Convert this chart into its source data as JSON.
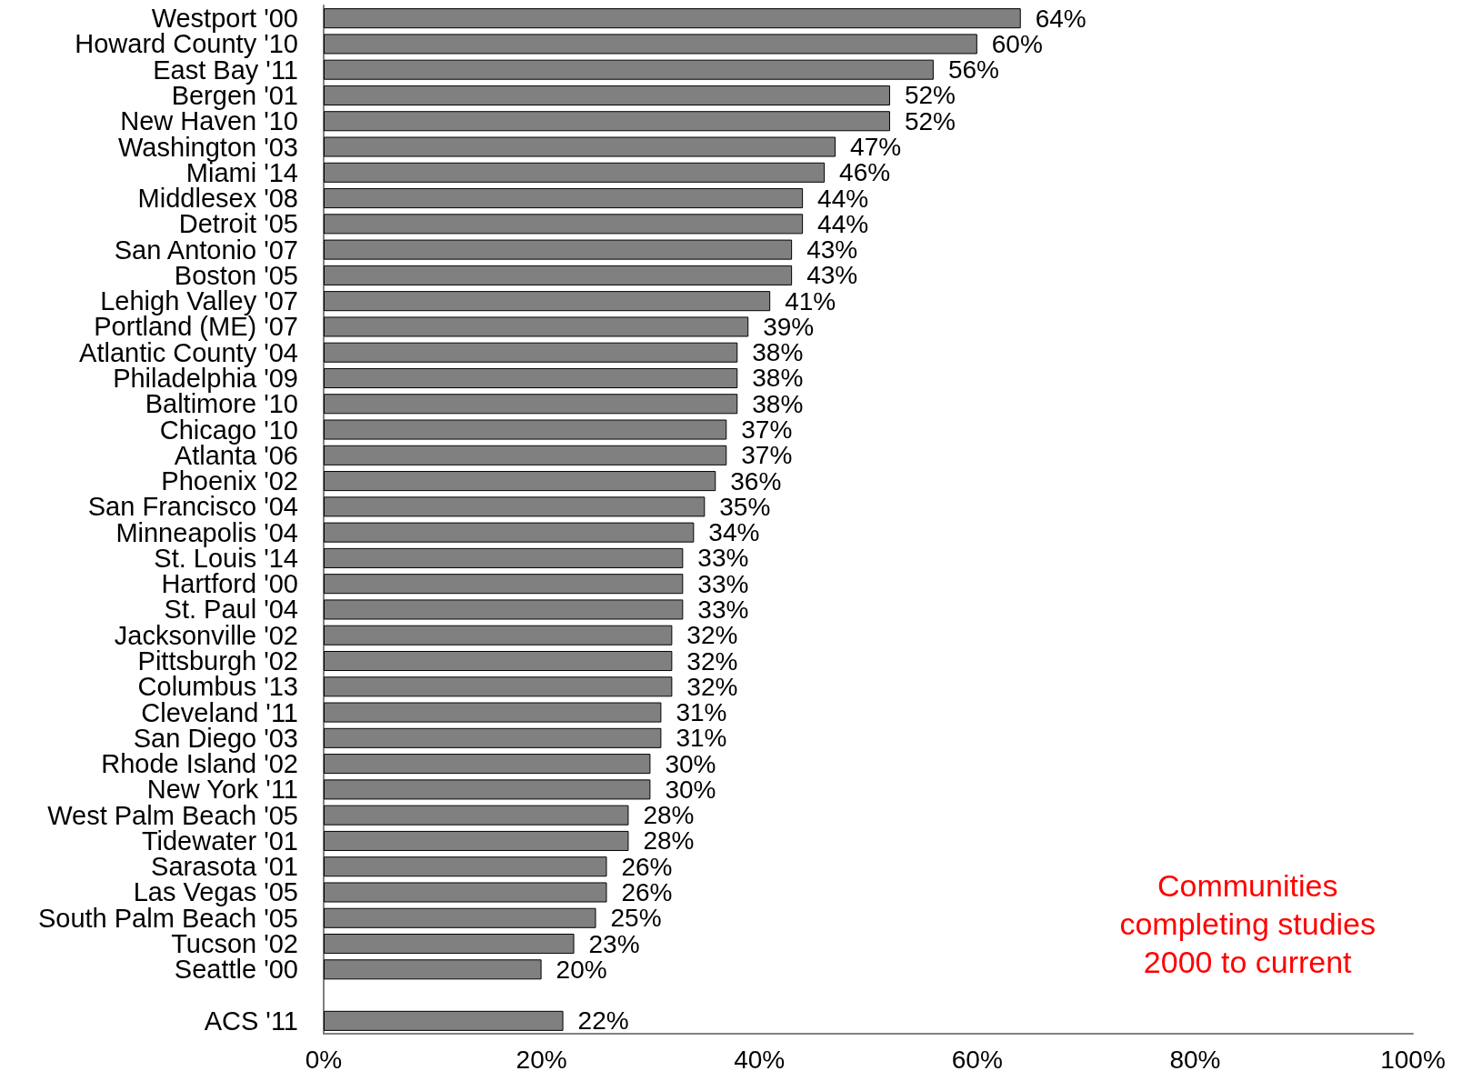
{
  "chart_data": {
    "type": "bar",
    "orientation": "horizontal",
    "categories": [
      "Westport '00",
      "Howard County '10",
      "East Bay '11",
      "Bergen '01",
      "New Haven '10",
      "Washington '03",
      "Miami '14",
      "Middlesex '08",
      "Detroit '05",
      "San Antonio '07",
      "Boston '05",
      "Lehigh Valley '07",
      "Portland (ME) '07",
      "Atlantic County '04",
      "Philadelphia '09",
      "Baltimore '10",
      "Chicago '10",
      "Atlanta '06",
      "Phoenix '02",
      "San Francisco '04",
      "Minneapolis '04",
      "St. Louis '14",
      "Hartford '00",
      "St. Paul '04",
      "Jacksonville '02",
      "Pittsburgh '02",
      "Columbus '13",
      "Cleveland '11",
      "San Diego '03",
      "Rhode Island '02",
      "New York '11",
      "West Palm Beach '05",
      "Tidewater '01",
      "Sarasota '01",
      "Las Vegas '05",
      "South Palm Beach '05",
      "Tucson '02",
      "Seattle '00",
      null,
      "ACS '11"
    ],
    "values": [
      64,
      60,
      56,
      52,
      52,
      47,
      46,
      44,
      44,
      43,
      43,
      41,
      39,
      38,
      38,
      38,
      37,
      37,
      36,
      35,
      34,
      33,
      33,
      33,
      32,
      32,
      32,
      31,
      31,
      30,
      30,
      28,
      28,
      26,
      26,
      25,
      23,
      20,
      null,
      22
    ],
    "value_labels": [
      "64%",
      "60%",
      "56%",
      "52%",
      "52%",
      "47%",
      "46%",
      "44%",
      "44%",
      "43%",
      "43%",
      "41%",
      "39%",
      "38%",
      "38%",
      "38%",
      "37%",
      "37%",
      "36%",
      "35%",
      "34%",
      "33%",
      "33%",
      "33%",
      "32%",
      "32%",
      "32%",
      "31%",
      "31%",
      "30%",
      "30%",
      "28%",
      "28%",
      "26%",
      "26%",
      "25%",
      "23%",
      "20%",
      null,
      "22%"
    ],
    "color": "#808080",
    "xlim": [
      0,
      100
    ],
    "xticks": [
      {
        "value": 0,
        "label": "0%"
      },
      {
        "value": 20,
        "label": "20%"
      },
      {
        "value": 40,
        "label": "40%"
      },
      {
        "value": 60,
        "label": "60%"
      },
      {
        "value": 80,
        "label": "80%"
      },
      {
        "value": 100,
        "label": "100%"
      }
    ],
    "grid": false,
    "annotations": [
      "Communities\ncompleting studies\n2000 to current"
    ]
  }
}
